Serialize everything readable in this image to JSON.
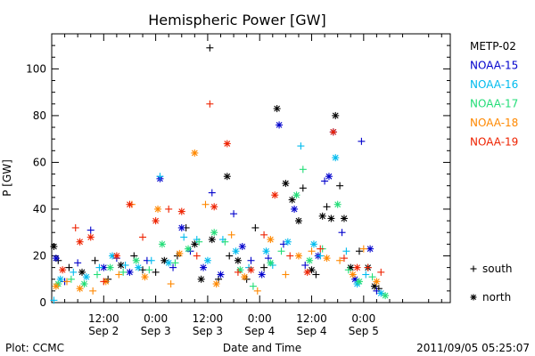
{
  "chart_data": {
    "type": "scatter",
    "title": "Hemispheric Power [GW]",
    "xlabel": "Date and Time",
    "ylabel": "P [GW]",
    "ylim": [
      0,
      115
    ],
    "xlim": [
      0,
      92
    ],
    "x_unit": "hours since 2011/09/02 00:00 UT",
    "yticks": [
      0,
      20,
      40,
      60,
      80,
      100
    ],
    "xticks": [
      {
        "x": 12,
        "top": "12:00",
        "bottom": "Sep 2"
      },
      {
        "x": 24,
        "top": "0:00",
        "bottom": "Sep 3"
      },
      {
        "x": 36,
        "top": "12:00",
        "bottom": "Sep 3"
      },
      {
        "x": 48,
        "top": "0:00",
        "bottom": "Sep 4"
      },
      {
        "x": 60,
        "top": "12:00",
        "bottom": "Sep 4"
      },
      {
        "x": 72,
        "top": "0:00",
        "bottom": "Sep 5"
      }
    ],
    "legend_position": "right",
    "marker_legend": [
      {
        "symbol": "+",
        "label": "south"
      },
      {
        "symbol": "*",
        "label": "north"
      }
    ],
    "series": [
      {
        "name": "METP-02",
        "color": "#000000",
        "points": [
          {
            "x": 0.5,
            "y": 24,
            "m": "*"
          },
          {
            "x": 1.5,
            "y": 18,
            "m": "+"
          },
          {
            "x": 4,
            "y": 15,
            "m": "+"
          },
          {
            "x": 7,
            "y": 13,
            "m": "*"
          },
          {
            "x": 10,
            "y": 18,
            "m": "+"
          },
          {
            "x": 13,
            "y": 10,
            "m": "+"
          },
          {
            "x": 16,
            "y": 16,
            "m": "*"
          },
          {
            "x": 19,
            "y": 20,
            "m": "+"
          },
          {
            "x": 21,
            "y": 14,
            "m": "+"
          },
          {
            "x": 24,
            "y": 13,
            "m": "+"
          },
          {
            "x": 26,
            "y": 18,
            "m": "*"
          },
          {
            "x": 29,
            "y": 20,
            "m": "+"
          },
          {
            "x": 31,
            "y": 32,
            "m": "+"
          },
          {
            "x": 33,
            "y": 25,
            "m": "*"
          },
          {
            "x": 34.5,
            "y": 10,
            "m": "*"
          },
          {
            "x": 36.5,
            "y": 109,
            "m": "+"
          },
          {
            "x": 37,
            "y": 27,
            "m": "*"
          },
          {
            "x": 38.5,
            "y": 10,
            "m": "+"
          },
          {
            "x": 40.5,
            "y": 54,
            "m": "*"
          },
          {
            "x": 41,
            "y": 20,
            "m": "+"
          },
          {
            "x": 43,
            "y": 18,
            "m": "*"
          },
          {
            "x": 45,
            "y": 10,
            "m": "+"
          },
          {
            "x": 47,
            "y": 32,
            "m": "+"
          },
          {
            "x": 49,
            "y": 15,
            "m": "+"
          },
          {
            "x": 52,
            "y": 83,
            "m": "*"
          },
          {
            "x": 54,
            "y": 51,
            "m": "*"
          },
          {
            "x": 55.5,
            "y": 44,
            "m": "*"
          },
          {
            "x": 57,
            "y": 35,
            "m": "*"
          },
          {
            "x": 58,
            "y": 49,
            "m": "+"
          },
          {
            "x": 60,
            "y": 14,
            "m": "*"
          },
          {
            "x": 61,
            "y": 12,
            "m": "+"
          },
          {
            "x": 62.5,
            "y": 37,
            "m": "*"
          },
          {
            "x": 63.5,
            "y": 41,
            "m": "+"
          },
          {
            "x": 64.5,
            "y": 36,
            "m": "*"
          },
          {
            "x": 65.5,
            "y": 80,
            "m": "*"
          },
          {
            "x": 66.5,
            "y": 50,
            "m": "+"
          },
          {
            "x": 67.5,
            "y": 36,
            "m": "*"
          },
          {
            "x": 69,
            "y": 15,
            "m": "*"
          },
          {
            "x": 71,
            "y": 22,
            "m": "+"
          },
          {
            "x": 73,
            "y": 15,
            "m": "*"
          },
          {
            "x": 74.5,
            "y": 7,
            "m": "*"
          },
          {
            "x": 75.5,
            "y": 6,
            "m": "+"
          }
        ]
      },
      {
        "name": "NOAA-15",
        "color": "#0000cc",
        "points": [
          {
            "x": 1,
            "y": 19,
            "m": "*"
          },
          {
            "x": 3,
            "y": 9,
            "m": "+"
          },
          {
            "x": 6,
            "y": 17,
            "m": "+"
          },
          {
            "x": 9,
            "y": 31,
            "m": "+"
          },
          {
            "x": 12,
            "y": 15,
            "m": "*"
          },
          {
            "x": 15,
            "y": 19,
            "m": "+"
          },
          {
            "x": 18,
            "y": 13,
            "m": "*"
          },
          {
            "x": 22,
            "y": 18,
            "m": "+"
          },
          {
            "x": 25,
            "y": 53,
            "m": "*"
          },
          {
            "x": 28,
            "y": 15,
            "m": "+"
          },
          {
            "x": 30,
            "y": 32,
            "m": "*"
          },
          {
            "x": 32,
            "y": 22,
            "m": "+"
          },
          {
            "x": 35,
            "y": 15,
            "m": "*"
          },
          {
            "x": 37,
            "y": 47,
            "m": "+"
          },
          {
            "x": 39,
            "y": 12,
            "m": "*"
          },
          {
            "x": 42,
            "y": 38,
            "m": "+"
          },
          {
            "x": 44,
            "y": 24,
            "m": "*"
          },
          {
            "x": 46,
            "y": 18,
            "m": "+"
          },
          {
            "x": 48.5,
            "y": 12,
            "m": "*"
          },
          {
            "x": 50,
            "y": 19,
            "m": "+"
          },
          {
            "x": 52.5,
            "y": 76,
            "m": "*"
          },
          {
            "x": 53.5,
            "y": 25,
            "m": "+"
          },
          {
            "x": 56,
            "y": 40,
            "m": "*"
          },
          {
            "x": 58.5,
            "y": 16,
            "m": "+"
          },
          {
            "x": 61.5,
            "y": 20,
            "m": "*"
          },
          {
            "x": 63,
            "y": 52,
            "m": "+"
          },
          {
            "x": 64,
            "y": 54,
            "m": "*"
          },
          {
            "x": 65,
            "y": 73,
            "m": "*"
          },
          {
            "x": 67,
            "y": 30,
            "m": "+"
          },
          {
            "x": 70,
            "y": 10,
            "m": "*"
          },
          {
            "x": 71.5,
            "y": 69,
            "m": "+"
          },
          {
            "x": 73.5,
            "y": 23,
            "m": "*"
          },
          {
            "x": 75,
            "y": 5,
            "m": "+"
          }
        ]
      },
      {
        "name": "NOAA-16",
        "color": "#00bbee",
        "points": [
          {
            "x": 0.5,
            "y": 1,
            "m": "+"
          },
          {
            "x": 2,
            "y": 10,
            "m": "*"
          },
          {
            "x": 5,
            "y": 13,
            "m": "+"
          },
          {
            "x": 8,
            "y": 11,
            "m": "*"
          },
          {
            "x": 11,
            "y": 15,
            "m": "+"
          },
          {
            "x": 14,
            "y": 20,
            "m": "*"
          },
          {
            "x": 17,
            "y": 16,
            "m": "+"
          },
          {
            "x": 20,
            "y": 15,
            "m": "*"
          },
          {
            "x": 23,
            "y": 18,
            "m": "+"
          },
          {
            "x": 25,
            "y": 54,
            "m": "+"
          },
          {
            "x": 27,
            "y": 17,
            "m": "*"
          },
          {
            "x": 30.5,
            "y": 28,
            "m": "+"
          },
          {
            "x": 33.5,
            "y": 27,
            "m": "+"
          },
          {
            "x": 36,
            "y": 18,
            "m": "*"
          },
          {
            "x": 39.5,
            "y": 27,
            "m": "+"
          },
          {
            "x": 42.5,
            "y": 22,
            "m": "*"
          },
          {
            "x": 45.5,
            "y": 15,
            "m": "+"
          },
          {
            "x": 49.5,
            "y": 22,
            "m": "*"
          },
          {
            "x": 51,
            "y": 16,
            "m": "+"
          },
          {
            "x": 54.5,
            "y": 26,
            "m": "*"
          },
          {
            "x": 57.5,
            "y": 67,
            "m": "+"
          },
          {
            "x": 60.5,
            "y": 25,
            "m": "*"
          },
          {
            "x": 62,
            "y": 20,
            "m": "+"
          },
          {
            "x": 65.5,
            "y": 62,
            "m": "*"
          },
          {
            "x": 68,
            "y": 22,
            "m": "+"
          },
          {
            "x": 70.5,
            "y": 8,
            "m": "*"
          },
          {
            "x": 72.5,
            "y": 12,
            "m": "+"
          },
          {
            "x": 76,
            "y": 4,
            "m": "*"
          }
        ]
      },
      {
        "name": "NOAA-17",
        "color": "#22dd77",
        "points": [
          {
            "x": 1.5,
            "y": 8,
            "m": "*"
          },
          {
            "x": 4.5,
            "y": 10,
            "m": "+"
          },
          {
            "x": 7.5,
            "y": 8,
            "m": "*"
          },
          {
            "x": 10.5,
            "y": 12,
            "m": "+"
          },
          {
            "x": 13.5,
            "y": 15,
            "m": "*"
          },
          {
            "x": 16.5,
            "y": 13,
            "m": "+"
          },
          {
            "x": 19.5,
            "y": 18,
            "m": "*"
          },
          {
            "x": 22.5,
            "y": 14,
            "m": "+"
          },
          {
            "x": 25.5,
            "y": 25,
            "m": "*"
          },
          {
            "x": 28.5,
            "y": 17,
            "m": "+"
          },
          {
            "x": 31.5,
            "y": 23,
            "m": "*"
          },
          {
            "x": 34,
            "y": 26,
            "m": "+"
          },
          {
            "x": 37.5,
            "y": 30,
            "m": "*"
          },
          {
            "x": 40,
            "y": 26,
            "m": "+"
          },
          {
            "x": 43.5,
            "y": 14,
            "m": "*"
          },
          {
            "x": 46.5,
            "y": 7,
            "m": "+"
          },
          {
            "x": 50.5,
            "y": 17,
            "m": "*"
          },
          {
            "x": 53,
            "y": 22,
            "m": "+"
          },
          {
            "x": 56.5,
            "y": 46,
            "m": "*"
          },
          {
            "x": 58,
            "y": 57,
            "m": "+"
          },
          {
            "x": 59.5,
            "y": 18,
            "m": "*"
          },
          {
            "x": 62.5,
            "y": 23,
            "m": "+"
          },
          {
            "x": 66,
            "y": 42,
            "m": "*"
          },
          {
            "x": 68.5,
            "y": 14,
            "m": "+"
          },
          {
            "x": 71,
            "y": 9,
            "m": "*"
          },
          {
            "x": 74,
            "y": 11,
            "m": "+"
          },
          {
            "x": 77,
            "y": 3,
            "m": "*"
          }
        ]
      },
      {
        "name": "NOAA-18",
        "color": "#ff8800",
        "points": [
          {
            "x": 1,
            "y": 7,
            "m": "*"
          },
          {
            "x": 3.5,
            "y": 9,
            "m": "+"
          },
          {
            "x": 6.5,
            "y": 6,
            "m": "*"
          },
          {
            "x": 9.5,
            "y": 5,
            "m": "+"
          },
          {
            "x": 12.5,
            "y": 9,
            "m": "*"
          },
          {
            "x": 15.5,
            "y": 12,
            "m": "+"
          },
          {
            "x": 18.5,
            "y": 42,
            "m": "+"
          },
          {
            "x": 21.5,
            "y": 11,
            "m": "*"
          },
          {
            "x": 24.5,
            "y": 40,
            "m": "*"
          },
          {
            "x": 27.5,
            "y": 8,
            "m": "+"
          },
          {
            "x": 29.5,
            "y": 21,
            "m": "*"
          },
          {
            "x": 33,
            "y": 64,
            "m": "*"
          },
          {
            "x": 35.5,
            "y": 42,
            "m": "+"
          },
          {
            "x": 38,
            "y": 8,
            "m": "*"
          },
          {
            "x": 41.5,
            "y": 29,
            "m": "+"
          },
          {
            "x": 44.5,
            "y": 11,
            "m": "*"
          },
          {
            "x": 47.5,
            "y": 5,
            "m": "+"
          },
          {
            "x": 50.5,
            "y": 27,
            "m": "*"
          },
          {
            "x": 54,
            "y": 12,
            "m": "+"
          },
          {
            "x": 57,
            "y": 20,
            "m": "*"
          },
          {
            "x": 60,
            "y": 22,
            "m": "+"
          },
          {
            "x": 63.5,
            "y": 19,
            "m": "*"
          },
          {
            "x": 66.5,
            "y": 18,
            "m": "+"
          },
          {
            "x": 69.5,
            "y": 12,
            "m": "*"
          },
          {
            "x": 72,
            "y": 23,
            "m": "+"
          },
          {
            "x": 75,
            "y": 9,
            "m": "*"
          }
        ]
      },
      {
        "name": "NOAA-19",
        "color": "#ee2200",
        "points": [
          {
            "x": 2.5,
            "y": 14,
            "m": "*"
          },
          {
            "x": 5.5,
            "y": 32,
            "m": "+"
          },
          {
            "x": 6.5,
            "y": 26,
            "m": "*"
          },
          {
            "x": 9,
            "y": 28,
            "m": "*"
          },
          {
            "x": 12,
            "y": 9,
            "m": "+"
          },
          {
            "x": 15,
            "y": 20,
            "m": "*"
          },
          {
            "x": 18,
            "y": 42,
            "m": "*"
          },
          {
            "x": 21,
            "y": 28,
            "m": "+"
          },
          {
            "x": 24,
            "y": 35,
            "m": "*"
          },
          {
            "x": 27,
            "y": 40,
            "m": "+"
          },
          {
            "x": 30,
            "y": 39,
            "m": "*"
          },
          {
            "x": 33.5,
            "y": 20,
            "m": "+"
          },
          {
            "x": 36.5,
            "y": 85,
            "m": "+"
          },
          {
            "x": 37.5,
            "y": 41,
            "m": "*"
          },
          {
            "x": 40.5,
            "y": 68,
            "m": "*"
          },
          {
            "x": 43,
            "y": 13,
            "m": "+"
          },
          {
            "x": 46,
            "y": 14,
            "m": "*"
          },
          {
            "x": 49,
            "y": 29,
            "m": "+"
          },
          {
            "x": 51.5,
            "y": 46,
            "m": "*"
          },
          {
            "x": 55,
            "y": 20,
            "m": "+"
          },
          {
            "x": 59,
            "y": 13,
            "m": "*"
          },
          {
            "x": 62,
            "y": 23,
            "m": "+"
          },
          {
            "x": 65,
            "y": 73,
            "m": "*"
          },
          {
            "x": 67.5,
            "y": 19,
            "m": "+"
          },
          {
            "x": 70.5,
            "y": 15,
            "m": "*"
          },
          {
            "x": 73,
            "y": 15,
            "m": "+"
          },
          {
            "x": 76,
            "y": 13,
            "m": "+"
          }
        ]
      }
    ]
  },
  "footer": {
    "plot_credit": "Plot: CCMC",
    "timestamp": "2011/09/05 05:25:07"
  }
}
